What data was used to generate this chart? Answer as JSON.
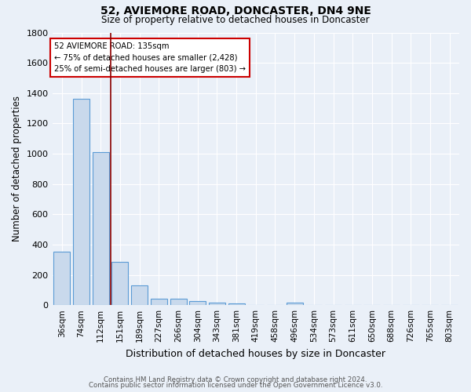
{
  "title": "52, AVIEMORE ROAD, DONCASTER, DN4 9NE",
  "subtitle": "Size of property relative to detached houses in Doncaster",
  "xlabel": "Distribution of detached houses by size in Doncaster",
  "ylabel": "Number of detached properties",
  "footer_line1": "Contains HM Land Registry data © Crown copyright and database right 2024.",
  "footer_line2": "Contains public sector information licensed under the Open Government Licence v3.0.",
  "categories": [
    "36sqm",
    "74sqm",
    "112sqm",
    "151sqm",
    "189sqm",
    "227sqm",
    "266sqm",
    "304sqm",
    "343sqm",
    "381sqm",
    "419sqm",
    "458sqm",
    "496sqm",
    "534sqm",
    "573sqm",
    "611sqm",
    "650sqm",
    "688sqm",
    "726sqm",
    "765sqm",
    "803sqm"
  ],
  "values": [
    355,
    1360,
    1010,
    285,
    130,
    42,
    42,
    28,
    18,
    12,
    0,
    0,
    18,
    0,
    0,
    0,
    0,
    0,
    0,
    0,
    0
  ],
  "bar_color": "#c9d9ec",
  "bar_edge_color": "#5b9bd5",
  "background_color": "#eaf0f8",
  "grid_color": "#ffffff",
  "annotation_box_color": "#ffffff",
  "annotation_box_edge": "#cc0000",
  "red_line_x": 2.5,
  "property_label": "52 AVIEMORE ROAD: 135sqm",
  "pct_smaller_label": "← 75% of detached houses are smaller (2,428)",
  "pct_larger_label": "25% of semi-detached houses are larger (803) →",
  "ylim": [
    0,
    1800
  ],
  "yticks": [
    0,
    200,
    400,
    600,
    800,
    1000,
    1200,
    1400,
    1600,
    1800
  ]
}
